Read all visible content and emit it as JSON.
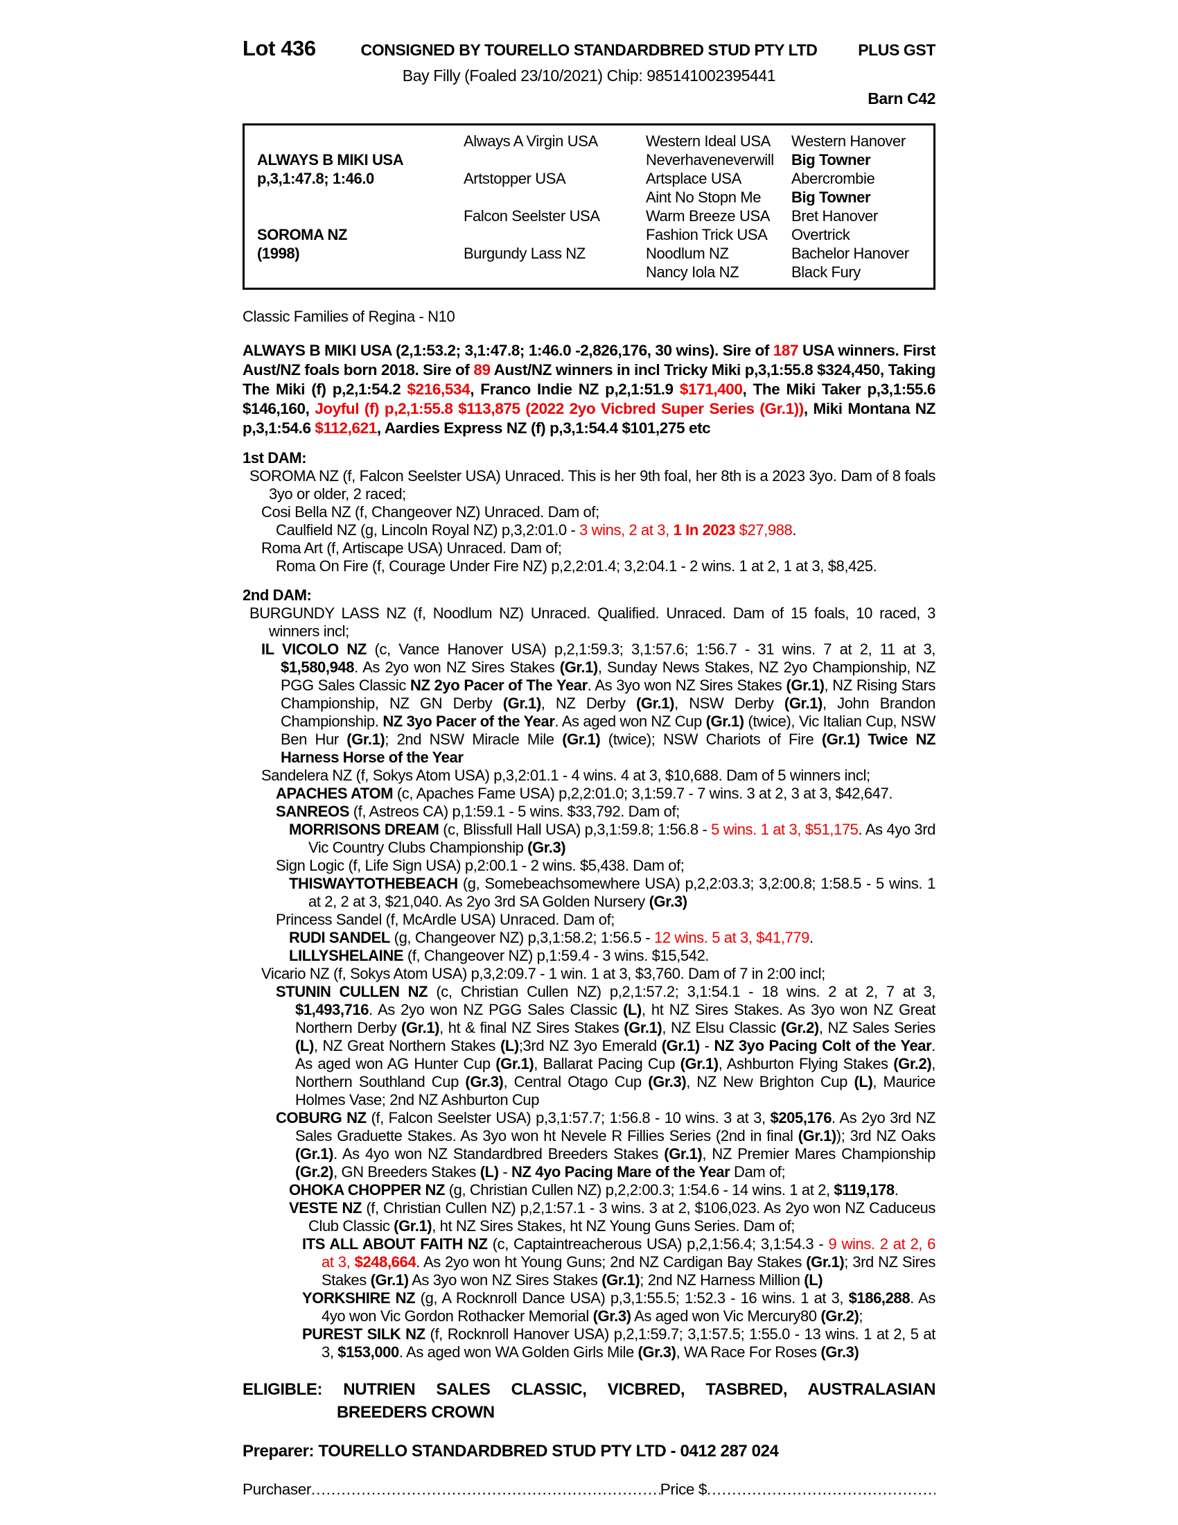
{
  "colors": {
    "accent_red": "#ee0000",
    "text": "#000000",
    "background": "#ffffff"
  },
  "header": {
    "lot": "Lot 436",
    "consignor": "CONSIGNED BY TOURELLO STANDARDBRED STUD PTY LTD",
    "gst": "PLUS GST",
    "subtitle": "Bay Filly (Foaled 23/10/2021) Chip: 985141002395441",
    "barn": "Barn C42"
  },
  "pedigree": {
    "rows": [
      [
        {
          "t": ""
        },
        {
          "t": "Always A Virgin USA"
        },
        {
          "t": "Western Ideal USA"
        },
        {
          "t": "Western Hanover"
        }
      ],
      [
        {
          "t": "ALWAYS B MIKI USA",
          "b": true
        },
        {
          "t": ""
        },
        {
          "t": "Neverhaveneverwill"
        },
        {
          "t": "Big Towner",
          "b": true
        }
      ],
      [
        {
          "t": "p,3,1:47.8; 1:46.0",
          "b": true
        },
        {
          "t": "Artstopper USA"
        },
        {
          "t": "Artsplace USA"
        },
        {
          "t": "Abercrombie"
        }
      ],
      [
        {
          "t": ""
        },
        {
          "t": ""
        },
        {
          "t": "Aint No Stopn Me"
        },
        {
          "t": "Big Towner",
          "b": true
        }
      ],
      [
        {
          "t": ""
        },
        {
          "t": "Falcon Seelster USA"
        },
        {
          "t": "Warm Breeze USA"
        },
        {
          "t": "Bret Hanover"
        }
      ],
      [
        {
          "t": "SOROMA NZ",
          "b": true
        },
        {
          "t": ""
        },
        {
          "t": "Fashion Trick USA"
        },
        {
          "t": "Overtrick"
        }
      ],
      [
        {
          "t": "(1998)",
          "b": true
        },
        {
          "t": "Burgundy Lass NZ"
        },
        {
          "t": "Noodlum NZ"
        },
        {
          "t": "Bachelor Hanover"
        }
      ],
      [
        {
          "t": ""
        },
        {
          "t": ""
        },
        {
          "t": "Nancy Iola NZ"
        },
        {
          "t": "Black Fury"
        }
      ]
    ]
  },
  "classic_families": "Classic Families of Regina - N10",
  "sire_summary": [
    {
      "t": "ALWAYS B MIKI USA (2,1:53.2; 3,1:47.8; 1:46.0 -2,826,176, 30 wins). Sire of "
    },
    {
      "t": "187",
      "r": true
    },
    {
      "t": " USA winners. First Aust/NZ foals born 2018. Sire of "
    },
    {
      "t": "89",
      "r": true
    },
    {
      "t": " Aust/NZ winners in incl Tricky Miki p,3,1:55.8 $324,450, Taking The Miki (f) p,2,1:54.2 "
    },
    {
      "t": "$216,534",
      "r": true
    },
    {
      "t": ", Franco Indie NZ p,2,1:51.9 "
    },
    {
      "t": "$171,400",
      "r": true
    },
    {
      "t": ", The Miki Taker p,3,1:55.6 $146,160, "
    },
    {
      "t": "Joyful (f) p,2,1:55.8 $113,875 (2022 2yo Vicbred Super Series (Gr.1))",
      "r": true
    },
    {
      "t": ", Miki Montana NZ p,3,1:54.6 "
    },
    {
      "t": "$112,621",
      "r": true
    },
    {
      "t": ", Aardies Express NZ (f) p,3,1:54.4 $101,275 etc"
    }
  ],
  "family": {
    "sections": [
      {
        "header": "1st DAM:",
        "entries": [
          {
            "depth": 0,
            "runs": [
              {
                "t": "SOROMA NZ (f, Falcon Seelster USA) Unraced. This is her 9th foal, her 8th is a 2023 3yo. Dam of 8 foals 3yo or older, 2 raced;"
              }
            ]
          },
          {
            "depth": 1,
            "runs": [
              {
                "t": "Cosi Bella NZ (f, Changeover NZ) Unraced. Dam of;"
              }
            ]
          },
          {
            "depth": 2,
            "runs": [
              {
                "t": "Caulfield NZ (g, Lincoln Royal NZ) p,3,2:01.0 - "
              },
              {
                "t": "3 wins, 2 at 3, ",
                "r": true
              },
              {
                "t": "1 In 2023",
                "r": true,
                "b": true
              },
              {
                "t": " $27,988",
                "r": true
              },
              {
                "t": "."
              }
            ]
          },
          {
            "depth": 1,
            "runs": [
              {
                "t": "Roma Art (f, Artiscape USA) Unraced. Dam of;"
              }
            ]
          },
          {
            "depth": 2,
            "runs": [
              {
                "t": "Roma On Fire (f, Courage Under Fire NZ) p,2,2:01.4; 3,2:04.1 - 2 wins. 1 at 2, 1 at 3, $8,425."
              }
            ]
          }
        ]
      },
      {
        "header": "2nd DAM:",
        "entries": [
          {
            "depth": 0,
            "runs": [
              {
                "t": "BURGUNDY LASS NZ (f, Noodlum NZ) Unraced. Qualified. Unraced. Dam of 15 foals, 10 raced, 3 winners incl;"
              }
            ]
          },
          {
            "depth": 1,
            "runs": [
              {
                "t": "IL VICOLO NZ",
                "b": true
              },
              {
                "t": " (c, Vance Hanover USA) p,2,1:59.3; 3,1:57.6; 1:56.7 - 31 wins. 7 at 2, 11 at 3, "
              },
              {
                "t": "$1,580,948",
                "b": true
              },
              {
                "t": ". As 2yo won NZ Sires Stakes "
              },
              {
                "t": "(Gr.1)",
                "b": true
              },
              {
                "t": ", Sunday News Stakes, NZ 2yo Championship, NZ PGG Sales Classic "
              },
              {
                "t": "NZ 2yo Pacer of The Year",
                "b": true
              },
              {
                "t": ". As 3yo won NZ Sires Stakes "
              },
              {
                "t": "(Gr.1)",
                "b": true
              },
              {
                "t": ", NZ Rising Stars Championship, NZ GN Derby "
              },
              {
                "t": "(Gr.1)",
                "b": true
              },
              {
                "t": ", NZ Derby "
              },
              {
                "t": "(Gr.1)",
                "b": true
              },
              {
                "t": ", NSW Derby "
              },
              {
                "t": "(Gr.1)",
                "b": true
              },
              {
                "t": ", John Brandon Championship. "
              },
              {
                "t": "NZ 3yo Pacer of the Year",
                "b": true
              },
              {
                "t": ". As aged won NZ Cup "
              },
              {
                "t": "(Gr.1)",
                "b": true
              },
              {
                "t": " (twice), Vic Italian Cup, NSW Ben Hur "
              },
              {
                "t": "(Gr.1)",
                "b": true
              },
              {
                "t": "; 2nd NSW Miracle Mile "
              },
              {
                "t": "(Gr.1)",
                "b": true
              },
              {
                "t": " (twice); NSW Chariots of Fire "
              },
              {
                "t": "(Gr.1) Twice NZ Harness Horse of the Year",
                "b": true
              }
            ]
          },
          {
            "depth": 1,
            "runs": [
              {
                "t": "Sandelera NZ (f, Sokys Atom USA) p,3,2:01.1 - 4 wins. 4 at 3, $10,688. Dam of 5 winners incl;"
              }
            ]
          },
          {
            "depth": 2,
            "runs": [
              {
                "t": "APACHES ATOM",
                "b": true
              },
              {
                "t": " (c, Apaches Fame USA) p,2,2:01.0; 3,1:59.7 - 7 wins. 3 at 2, 3 at 3, $42,647."
              }
            ]
          },
          {
            "depth": 2,
            "runs": [
              {
                "t": "SANREOS",
                "b": true
              },
              {
                "t": " (f, Astreos CA) p,1:59.1 - 5 wins. $33,792. Dam of;"
              }
            ]
          },
          {
            "depth": 3,
            "runs": [
              {
                "t": "MORRISONS DREAM",
                "b": true
              },
              {
                "t": " (c, Blissfull Hall USA) p,3,1:59.8; 1:56.8 - "
              },
              {
                "t": "5 wins. 1 at 3, $51,175",
                "r": true
              },
              {
                "t": ". As 4yo 3rd Vic Country Clubs Championship "
              },
              {
                "t": "(Gr.3)",
                "b": true
              }
            ]
          },
          {
            "depth": 2,
            "runs": [
              {
                "t": "Sign Logic (f, Life Sign USA) p,2:00.1 - 2 wins. $5,438. Dam of;"
              }
            ]
          },
          {
            "depth": 3,
            "runs": [
              {
                "t": "THISWAYTOTHEBEACH",
                "b": true
              },
              {
                "t": " (g, Somebeachsomewhere USA) p,2,2:03.3; 3,2:00.8; 1:58.5 - 5 wins. 1 at 2, 2 at 3, $21,040. As 2yo 3rd SA Golden Nursery "
              },
              {
                "t": "(Gr.3)",
                "b": true
              }
            ]
          },
          {
            "depth": 2,
            "runs": [
              {
                "t": "Princess Sandel (f, McArdle USA) Unraced. Dam of;"
              }
            ]
          },
          {
            "depth": 3,
            "runs": [
              {
                "t": "RUDI SANDEL",
                "b": true
              },
              {
                "t": " (g, Changeover NZ) p,3,1:58.2; 1:56.5 - "
              },
              {
                "t": "12 wins. 5 at 3, $41,779",
                "r": true
              },
              {
                "t": "."
              }
            ]
          },
          {
            "depth": 3,
            "runs": [
              {
                "t": "LILLYSHELAINE",
                "b": true
              },
              {
                "t": " (f, Changeover NZ) p,1:59.4 - 3 wins. $15,542."
              }
            ]
          },
          {
            "depth": 1,
            "runs": [
              {
                "t": "Vicario NZ (f, Sokys Atom USA) p,3,2:09.7 - 1 win. 1 at 3, $3,760. Dam of 7 in 2:00 incl;"
              }
            ]
          },
          {
            "depth": 2,
            "runs": [
              {
                "t": "STUNIN CULLEN NZ",
                "b": true
              },
              {
                "t": " (c, Christian Cullen NZ) p,2,1:57.2; 3,1:54.1 - 18 wins. 2 at 2, 7 at 3, "
              },
              {
                "t": "$1,493,716",
                "b": true
              },
              {
                "t": ". As 2yo won NZ PGG Sales Classic "
              },
              {
                "t": "(L)",
                "b": true
              },
              {
                "t": ", ht NZ Sires Stakes. As 3yo won NZ Great Northern Derby "
              },
              {
                "t": "(Gr.1)",
                "b": true
              },
              {
                "t": ", ht & final NZ Sires Stakes "
              },
              {
                "t": "(Gr.1)",
                "b": true
              },
              {
                "t": ", NZ Elsu Classic "
              },
              {
                "t": "(Gr.2)",
                "b": true
              },
              {
                "t": ", NZ Sales Series "
              },
              {
                "t": "(L)",
                "b": true
              },
              {
                "t": ", NZ Great Northern Stakes "
              },
              {
                "t": "(L)",
                "b": true
              },
              {
                "t": ";3rd NZ 3yo Emerald "
              },
              {
                "t": "(Gr.1)",
                "b": true
              },
              {
                "t": " - "
              },
              {
                "t": "NZ 3yo Pacing Colt of the Year",
                "b": true
              },
              {
                "t": ". As aged won AG Hunter Cup "
              },
              {
                "t": "(Gr.1)",
                "b": true
              },
              {
                "t": ", Ballarat Pacing Cup "
              },
              {
                "t": "(Gr.1)",
                "b": true
              },
              {
                "t": ", Ashburton Flying Stakes "
              },
              {
                "t": "(Gr.2)",
                "b": true
              },
              {
                "t": ", Northern Southland Cup "
              },
              {
                "t": "(Gr.3)",
                "b": true
              },
              {
                "t": ", Central Otago Cup "
              },
              {
                "t": "(Gr.3)",
                "b": true
              },
              {
                "t": ", NZ New Brighton Cup "
              },
              {
                "t": "(L)",
                "b": true
              },
              {
                "t": ", Maurice Holmes Vase; 2nd NZ Ashburton Cup"
              }
            ]
          },
          {
            "depth": 2,
            "runs": [
              {
                "t": "COBURG NZ",
                "b": true
              },
              {
                "t": " (f, Falcon Seelster USA) p,3,1:57.7; 1:56.8 - 10 wins. 3 at 3, "
              },
              {
                "t": "$205,176",
                "b": true
              },
              {
                "t": ". As 2yo 3rd NZ Sales Graduette Stakes. As 3yo won ht Nevele R Fillies Series (2nd in final "
              },
              {
                "t": "(Gr.1)",
                "b": true
              },
              {
                "t": "); 3rd NZ Oaks "
              },
              {
                "t": "(Gr.1)",
                "b": true
              },
              {
                "t": ". As 4yo won NZ Standardbred Breeders Stakes "
              },
              {
                "t": "(Gr.1)",
                "b": true
              },
              {
                "t": ", NZ Premier Mares Championship "
              },
              {
                "t": "(Gr.2)",
                "b": true
              },
              {
                "t": ", GN Breeders Stakes "
              },
              {
                "t": "(L)",
                "b": true
              },
              {
                "t": " - "
              },
              {
                "t": "NZ 4yo Pacing Mare of the Year",
                "b": true
              },
              {
                "t": " Dam of;"
              }
            ]
          },
          {
            "depth": 3,
            "runs": [
              {
                "t": "OHOKA CHOPPER NZ",
                "b": true
              },
              {
                "t": " (g, Christian Cullen NZ) p,2,2:00.3; 1:54.6 - 14 wins. 1 at 2, "
              },
              {
                "t": "$119,178",
                "b": true
              },
              {
                "t": "."
              }
            ]
          },
          {
            "depth": 3,
            "runs": [
              {
                "t": "VESTE NZ",
                "b": true
              },
              {
                "t": " (f, Christian Cullen NZ) p,2,1:57.1 - 3 wins. 3 at 2, $106,023. As 2yo won NZ Caduceus Club Classic "
              },
              {
                "t": "(Gr.1)",
                "b": true
              },
              {
                "t": ", ht NZ Sires Stakes, ht NZ Young Guns Series. Dam of;"
              }
            ]
          },
          {
            "depth": 4,
            "runs": [
              {
                "t": "ITS ALL ABOUT FAITH NZ",
                "b": true
              },
              {
                "t": " (c, Captaintreacherous USA) p,2,1:56.4; 3,1:54.3 - "
              },
              {
                "t": "9 wins. 2 at 2, 6 at 3, ",
                "r": true
              },
              {
                "t": "$248,664",
                "r": true,
                "b": true
              },
              {
                "t": ". As 2yo won ht Young Guns; 2nd NZ Cardigan Bay Stakes "
              },
              {
                "t": "(Gr.1)",
                "b": true
              },
              {
                "t": "; 3rd NZ Sires Stakes "
              },
              {
                "t": "(Gr.1)",
                "b": true
              },
              {
                "t": " As 3yo won NZ Sires Stakes "
              },
              {
                "t": "(Gr.1)",
                "b": true
              },
              {
                "t": "; 2nd NZ Harness Million "
              },
              {
                "t": "(L)",
                "b": true
              }
            ]
          },
          {
            "depth": 4,
            "runs": [
              {
                "t": "YORKSHIRE NZ",
                "b": true
              },
              {
                "t": " (g, A Rocknroll Dance USA) p,3,1:55.5; 1:52.3 - 16 wins. 1 at 3, "
              },
              {
                "t": "$186,288",
                "b": true
              },
              {
                "t": ". As 4yo won Vic Gordon Rothacker Memorial "
              },
              {
                "t": "(Gr.3)",
                "b": true
              },
              {
                "t": " As aged won Vic Mercury80 "
              },
              {
                "t": "(Gr.2)",
                "b": true
              },
              {
                "t": ";"
              }
            ]
          },
          {
            "depth": 4,
            "runs": [
              {
                "t": "PUREST SILK NZ",
                "b": true
              },
              {
                "t": " (f, Rocknroll Hanover USA) p,2,1:59.7; 3,1:57.5; 1:55.0 - 13 wins. 1 at 2, 5 at 3, "
              },
              {
                "t": "$153,000",
                "b": true
              },
              {
                "t": ". As aged won WA Golden Girls Mile "
              },
              {
                "t": "(Gr.3)",
                "b": true
              },
              {
                "t": ", WA Race For Roses "
              },
              {
                "t": "(Gr.3)",
                "b": true
              }
            ]
          }
        ]
      }
    ]
  },
  "eligible": {
    "line1": "ELIGIBLE: NUTRIEN SALES CLASSIC, VICBRED, TASBRED, AUSTRALASIAN",
    "line2": "BREEDERS CROWN"
  },
  "preparer": "Preparer: TOURELLO STANDARDBRED STUD PTY LTD - 0412 287 024",
  "purchaser": {
    "label": "Purchaser",
    "leader1": "..........................................................................................................................",
    "price_label": "Price $",
    "leader2": ".................................................................."
  }
}
